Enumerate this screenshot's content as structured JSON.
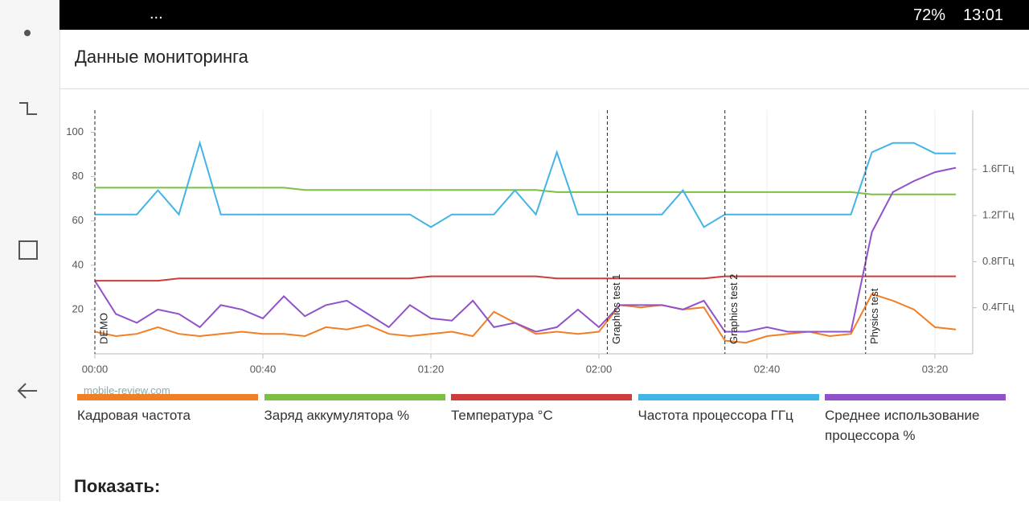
{
  "status_bar": {
    "more": "...",
    "battery": "72%",
    "time": "13:01"
  },
  "header": {
    "title": "Данные мониторинга"
  },
  "watermark": "mobile-review.com",
  "chart_data": {
    "type": "line",
    "x": [
      0,
      5,
      10,
      15,
      20,
      25,
      30,
      35,
      40,
      45,
      50,
      55,
      60,
      65,
      70,
      75,
      80,
      85,
      90,
      95,
      100,
      105,
      110,
      115,
      120,
      125,
      130,
      135,
      140,
      145,
      150,
      155,
      160,
      165,
      170,
      175,
      180,
      185,
      190,
      195,
      200,
      205
    ],
    "xlim": [
      0,
      209
    ],
    "xticks": [
      {
        "value": 0,
        "label": "00:00"
      },
      {
        "value": 40,
        "label": "00:40"
      },
      {
        "value": 80,
        "label": "01:20"
      },
      {
        "value": 120,
        "label": "02:00"
      },
      {
        "value": 160,
        "label": "02:40"
      },
      {
        "value": 200,
        "label": "03:20"
      }
    ],
    "ylim": [
      0,
      110
    ],
    "yticks": [
      20,
      40,
      60,
      80,
      100
    ],
    "y2lim": [
      0,
      2.115
    ],
    "y2ticks": [
      {
        "value": 0.4,
        "label": "0.4ГГц"
      },
      {
        "value": 0.8,
        "label": "0.8ГГц"
      },
      {
        "value": 1.2,
        "label": "1.2ГГц"
      },
      {
        "value": 1.6,
        "label": "1.6ГГц"
      }
    ],
    "grid": true,
    "series": [
      {
        "name": "Кадровая частота",
        "color": "#f07f25",
        "values": [
          10,
          8,
          9,
          12,
          9,
          8,
          9,
          10,
          9,
          9,
          8,
          12,
          11,
          13,
          9,
          8,
          9,
          10,
          8,
          19,
          14,
          9,
          10,
          9,
          10,
          22,
          21,
          22,
          20,
          21,
          6,
          5,
          8,
          9,
          10,
          8,
          9,
          27,
          24,
          20,
          12,
          11
        ]
      },
      {
        "name": "Заряд аккумулятора %",
        "color": "#7bc043",
        "values": [
          75,
          75,
          75,
          75,
          75,
          75,
          75,
          75,
          75,
          75,
          74,
          74,
          74,
          74,
          74,
          74,
          74,
          74,
          74,
          74,
          74,
          74,
          73,
          73,
          73,
          73,
          73,
          73,
          73,
          73,
          73,
          73,
          73,
          73,
          73,
          73,
          73,
          72,
          72,
          72,
          72,
          72
        ]
      },
      {
        "name": "Температура °C",
        "color": "#d03b3b",
        "values": [
          33,
          33,
          33,
          33,
          34,
          34,
          34,
          34,
          34,
          34,
          34,
          34,
          34,
          34,
          34,
          34,
          35,
          35,
          35,
          35,
          35,
          35,
          34,
          34,
          34,
          34,
          34,
          34,
          34,
          34,
          35,
          35,
          35,
          35,
          35,
          35,
          35,
          35,
          35,
          35,
          35,
          35
        ]
      },
      {
        "name": "Частота процессора ГГц",
        "color": "#42b4e6",
        "axis": "y2",
        "values": [
          1.21,
          1.21,
          1.21,
          1.42,
          1.21,
          1.83,
          1.21,
          1.21,
          1.21,
          1.21,
          1.21,
          1.21,
          1.21,
          1.21,
          1.21,
          1.21,
          1.1,
          1.21,
          1.21,
          1.21,
          1.42,
          1.21,
          1.75,
          1.21,
          1.21,
          1.21,
          1.21,
          1.21,
          1.42,
          1.1,
          1.21,
          1.21,
          1.21,
          1.21,
          1.21,
          1.21,
          1.21,
          1.75,
          1.83,
          1.83,
          1.74,
          1.74
        ]
      },
      {
        "name": "Среднее использование процессора %",
        "color": "#9152c9",
        "values": [
          33,
          18,
          14,
          20,
          18,
          12,
          22,
          20,
          16,
          26,
          17,
          22,
          24,
          18,
          12,
          22,
          16,
          15,
          24,
          12,
          14,
          10,
          12,
          20,
          12,
          22,
          22,
          22,
          20,
          24,
          10,
          10,
          12,
          10,
          10,
          10,
          10,
          55,
          73,
          78,
          82,
          84
        ]
      }
    ],
    "annotations": [
      {
        "text": "DEMO",
        "x": 0
      },
      {
        "text": "Graphics test 1",
        "x": 122
      },
      {
        "text": "Graphics test 2",
        "x": 150
      },
      {
        "text": "Physics test",
        "x": 183.5
      }
    ]
  },
  "show_label": "Показать:"
}
